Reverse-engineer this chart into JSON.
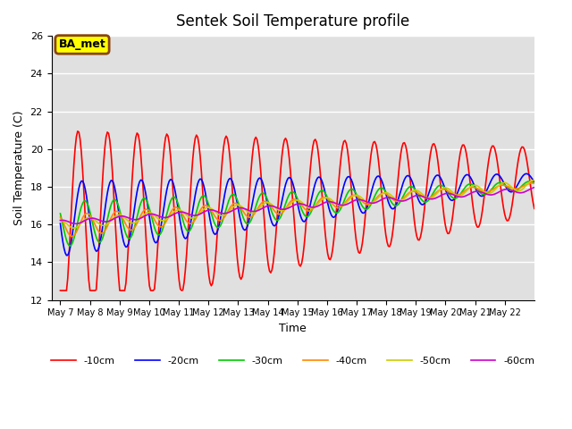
{
  "title": "Sentek Soil Temperature profile",
  "xlabel": "Time",
  "ylabel": "Soil Temperature (C)",
  "ylim": [
    12,
    26
  ],
  "background_color": "#e0e0e0",
  "fig_color": "#ffffff",
  "annotation": "BA_met",
  "series": [
    {
      "label": "-10cm",
      "color": "#ff0000",
      "linewidth": 1.2
    },
    {
      "label": "-20cm",
      "color": "#0000ff",
      "linewidth": 1.2
    },
    {
      "label": "-30cm",
      "color": "#00cc00",
      "linewidth": 1.2
    },
    {
      "label": "-40cm",
      "color": "#ff8800",
      "linewidth": 1.2
    },
    {
      "label": "-50cm",
      "color": "#cccc00",
      "linewidth": 1.2
    },
    {
      "label": "-60cm",
      "color": "#cc00cc",
      "linewidth": 1.2
    }
  ],
  "xtick_labels": [
    "May 7",
    "May 8",
    "May 9",
    "May 10",
    "May 11",
    "May 12",
    "May 13",
    "May 14",
    "May 15",
    "May 16",
    "May 17",
    "May 18",
    "May 19",
    "May 20",
    "May 21",
    "May 22"
  ],
  "ytick_values": [
    12,
    14,
    16,
    18,
    20,
    22,
    24,
    26
  ]
}
